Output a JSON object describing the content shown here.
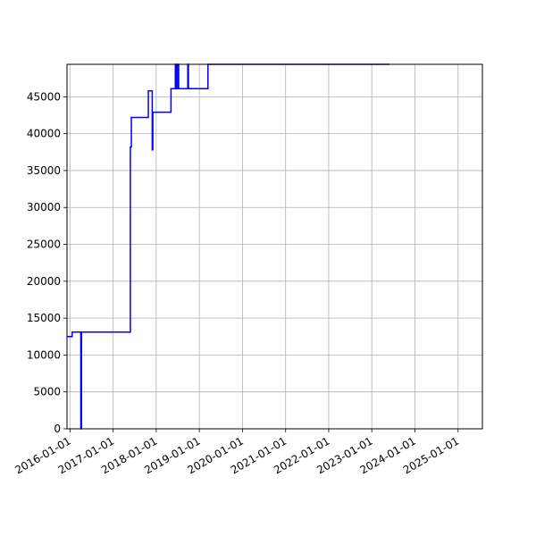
{
  "chart_data": {
    "type": "line",
    "title": "",
    "xlabel": "",
    "ylabel": "",
    "grid": true,
    "xlim": [
      "2015-12-07",
      "2025-07-26"
    ],
    "ylim": [
      0,
      49400
    ],
    "x_ticks": [
      "2016-01-01",
      "2017-01-01",
      "2018-01-01",
      "2019-01-01",
      "2020-01-01",
      "2021-01-01",
      "2022-01-01",
      "2023-01-01",
      "2024-01-01",
      "2025-01-01"
    ],
    "y_ticks": [
      0,
      5000,
      10000,
      15000,
      20000,
      25000,
      30000,
      35000,
      40000,
      45000
    ],
    "series": [
      {
        "color": "#0000ff",
        "step": true,
        "points": [
          [
            "2015-12-07",
            12500
          ],
          [
            "2016-01-20",
            12500
          ],
          [
            "2016-01-20",
            13100
          ],
          [
            "2016-04-02",
            13100
          ],
          [
            "2016-04-02",
            0
          ],
          [
            "2016-04-08",
            0
          ],
          [
            "2016-04-08",
            13100
          ],
          [
            "2017-05-27",
            13100
          ],
          [
            "2017-05-27",
            38200
          ],
          [
            "2017-06-04",
            38200
          ],
          [
            "2017-06-04",
            42200
          ],
          [
            "2017-10-26",
            42200
          ],
          [
            "2017-10-26",
            45800
          ],
          [
            "2017-11-28",
            45800
          ],
          [
            "2017-11-28",
            37800
          ],
          [
            "2017-12-03",
            37800
          ],
          [
            "2017-12-03",
            42900
          ],
          [
            "2018-05-06",
            42900
          ],
          [
            "2018-05-06",
            46100
          ],
          [
            "2018-06-12",
            46100
          ],
          [
            "2018-06-12",
            49400
          ],
          [
            "2018-06-20",
            49400
          ],
          [
            "2018-06-20",
            46100
          ],
          [
            "2018-07-02",
            46100
          ],
          [
            "2018-07-02",
            49400
          ],
          [
            "2018-07-10",
            49400
          ],
          [
            "2018-07-10",
            46100
          ],
          [
            "2018-09-25",
            46100
          ],
          [
            "2018-09-25",
            49400
          ],
          [
            "2018-10-01",
            49400
          ],
          [
            "2018-10-01",
            46100
          ],
          [
            "2019-03-15",
            46100
          ],
          [
            "2019-03-15",
            49400
          ],
          [
            "2023-06-01",
            49400
          ]
        ]
      }
    ]
  }
}
